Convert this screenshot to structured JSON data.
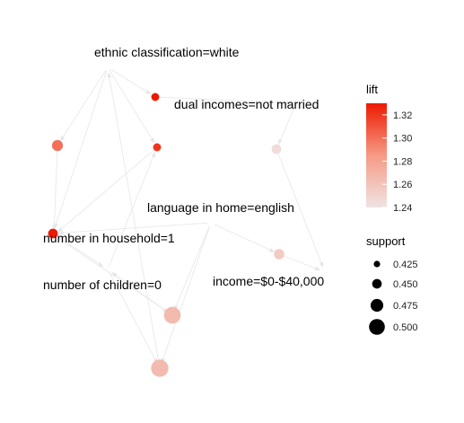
{
  "chart_data": {
    "type": "graph",
    "item_labels": [
      "ethnic classification=white",
      "dual incomes=not married",
      "language in home=english",
      "number in household=1",
      "number of children=0",
      "income=$0-$40,000"
    ],
    "legend": {
      "color_title": "lift",
      "color_ticks": [
        "1.32",
        "1.30",
        "1.28",
        "1.26",
        "1.24"
      ],
      "color_range": [
        1.24,
        1.33
      ],
      "color_low": "#efe4e3",
      "color_high": "#ee1a00",
      "size_title": "support",
      "size_ticks": [
        "0.425",
        "0.450",
        "0.475",
        "0.500"
      ],
      "size_values": [
        0.425,
        0.45,
        0.475,
        0.5
      ]
    },
    "rules": [
      {
        "lift": 1.33,
        "support": 0.41
      },
      {
        "lift": 1.32,
        "support": 0.41
      },
      {
        "lift": 1.3,
        "support": 0.43
      },
      {
        "lift": 1.33,
        "support": 0.42
      },
      {
        "lift": 1.245,
        "support": 0.42
      },
      {
        "lift": 1.255,
        "support": 0.425
      },
      {
        "lift": 1.265,
        "support": 0.5
      },
      {
        "lift": 1.265,
        "support": 0.51
      }
    ]
  }
}
